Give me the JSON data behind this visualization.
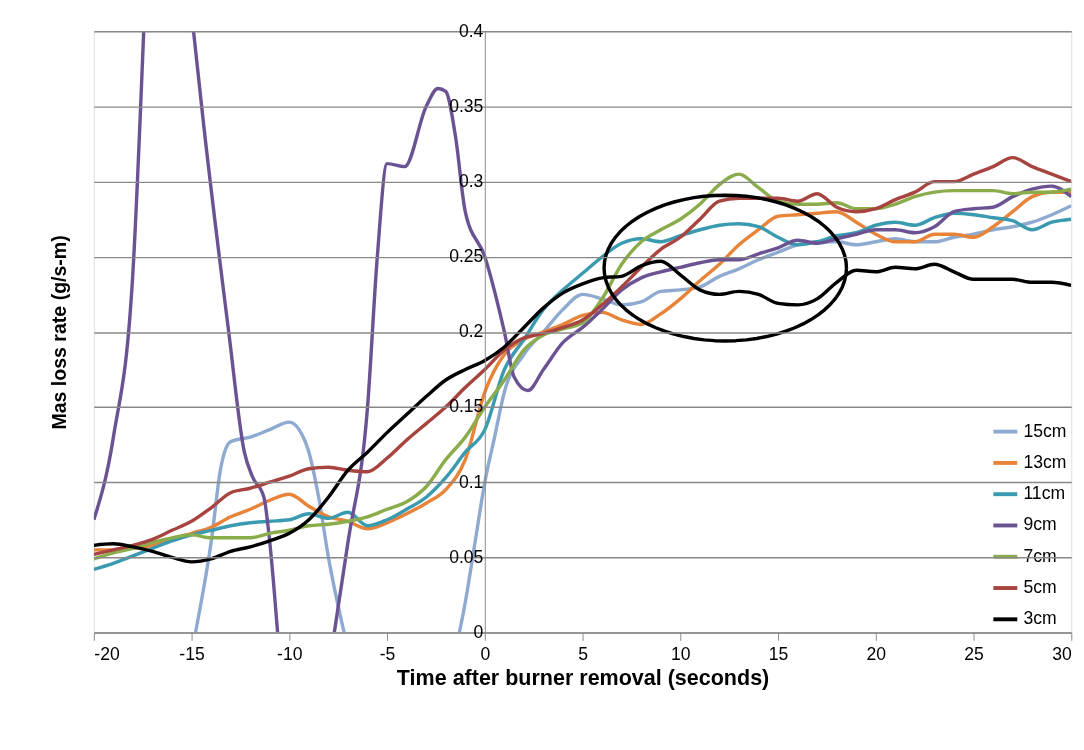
{
  "chart_data": {
    "type": "line",
    "xlabel": "Time after burner removal (seconds)",
    "ylabel": "Mas loss rate (g/s-m)",
    "x": [
      -20,
      -19,
      -18,
      -17,
      -16,
      -15,
      -14,
      -13,
      -12,
      -11,
      -10,
      -9,
      -8,
      -7,
      -6,
      -5,
      -4,
      -3,
      -2,
      -1,
      0,
      1,
      2,
      3,
      4,
      5,
      6,
      7,
      8,
      9,
      10,
      11,
      12,
      13,
      14,
      15,
      16,
      17,
      18,
      19,
      20,
      21,
      22,
      23,
      24,
      25,
      26,
      27,
      28,
      29,
      30
    ],
    "series": [
      {
        "name": "15cm",
        "color": "#8faad0",
        "x": [
          -14.8,
          -14,
          -13.5,
          -13,
          -12,
          -11,
          -10,
          -9.5,
          -9,
          -8.5,
          -8,
          -7.2,
          -4,
          -1.3,
          -1,
          -0.5,
          0,
          0.5,
          1,
          2,
          3,
          4,
          5,
          6,
          7,
          8,
          9,
          10,
          11,
          12,
          13,
          14,
          15,
          16,
          17,
          18,
          19,
          20,
          21,
          22,
          23,
          24,
          25,
          26,
          27,
          28,
          29,
          30
        ],
        "values": [
          0,
          0.06,
          0.11,
          0.127,
          0.13,
          0.135,
          0.14,
          0.135,
          0.12,
          0.09,
          0.05,
          0,
          null,
          0,
          0.02,
          0.06,
          0.1,
          0.13,
          0.16,
          0.185,
          0.2,
          0.215,
          0.225,
          0.222,
          0.218,
          0.22,
          0.227,
          0.228,
          0.23,
          0.237,
          0.242,
          0.248,
          0.253,
          0.258,
          0.26,
          0.26,
          0.258,
          0.26,
          0.262,
          0.26,
          0.26,
          0.263,
          0.265,
          0.268,
          0.27,
          0.273,
          0.278,
          0.284
        ]
      },
      {
        "name": "13cm",
        "color": "#e8843a",
        "values": [
          0.055,
          0.055,
          0.056,
          0.058,
          0.062,
          0.066,
          0.07,
          0.077,
          0.082,
          0.088,
          0.092,
          0.084,
          0.077,
          0.074,
          0.069,
          0.073,
          0.079,
          0.086,
          0.095,
          0.115,
          0.16,
          0.185,
          0.195,
          0.2,
          0.205,
          0.211,
          0.213,
          0.208,
          0.205,
          0.212,
          0.222,
          0.234,
          0.245,
          0.258,
          0.268,
          0.277,
          0.278,
          0.279,
          0.28,
          0.273,
          0.265,
          0.26,
          0.26,
          0.265,
          0.265,
          0.263,
          0.27,
          0.28,
          0.29,
          0.293,
          0.293
        ]
      },
      {
        "name": "11cm",
        "color": "#3a9ab0",
        "values": [
          0.042,
          0.046,
          0.051,
          0.056,
          0.061,
          0.065,
          0.068,
          0.071,
          0.073,
          0.074,
          0.075,
          0.079,
          0.076,
          0.08,
          0.071,
          0.075,
          0.082,
          0.09,
          0.103,
          0.12,
          0.135,
          0.175,
          0.195,
          0.215,
          0.228,
          0.239,
          0.25,
          0.259,
          0.262,
          0.26,
          0.264,
          0.268,
          0.271,
          0.272,
          0.27,
          0.263,
          0.258,
          0.26,
          0.264,
          0.266,
          0.271,
          0.273,
          0.271,
          0.276,
          0.279,
          0.278,
          0.276,
          0.274,
          0.268,
          0.273,
          0.275
        ]
      },
      {
        "name": "9cm",
        "color": "#6b5393",
        "x": [
          -20,
          -19,
          -18,
          -17.45,
          -16,
          -14.9,
          -14.4,
          -13.1,
          -12.3,
          -11.9,
          -11.3,
          -11,
          -10.6,
          -9,
          -7.7,
          -7,
          -6,
          -5.5,
          -5,
          -4.1,
          -3,
          -2.4,
          -2,
          -1.5,
          -1,
          0,
          1,
          1.5,
          2.2,
          3,
          4,
          5,
          6,
          7,
          8,
          9,
          10,
          11,
          12,
          13,
          14,
          15,
          16,
          17,
          18,
          19,
          20,
          21,
          22,
          23,
          24,
          25,
          26,
          27,
          28,
          29,
          30
        ],
        "values": [
          0.075,
          0.13,
          0.24,
          0.4,
          null,
          0.4,
          0.34,
          0.2,
          0.12,
          0.104,
          0.09,
          0.06,
          0,
          null,
          0,
          0.06,
          0.15,
          0.25,
          0.312,
          0.31,
          0.35,
          0.362,
          0.36,
          0.33,
          0.28,
          0.25,
          0.2,
          0.17,
          0.161,
          0.175,
          0.193,
          0.203,
          0.215,
          0.228,
          0.236,
          0.24,
          0.243,
          0.246,
          0.248,
          0.248,
          0.252,
          0.256,
          0.261,
          0.259,
          0.262,
          0.265,
          0.268,
          0.268,
          0.266,
          0.27,
          0.28,
          0.282,
          0.283,
          0.29,
          0.295,
          0.297,
          0.29
        ]
      },
      {
        "name": "7cm",
        "color": "#8aac4a",
        "values": [
          0.049,
          0.053,
          0.056,
          0.06,
          0.063,
          0.065,
          0.063,
          0.063,
          0.063,
          0.066,
          0.068,
          0.071,
          0.072,
          0.074,
          0.077,
          0.082,
          0.087,
          0.097,
          0.115,
          0.13,
          0.15,
          0.168,
          0.188,
          0.198,
          0.202,
          0.206,
          0.222,
          0.245,
          0.26,
          0.268,
          0.275,
          0.285,
          0.298,
          0.305,
          0.296,
          0.287,
          0.285,
          0.285,
          0.286,
          0.282,
          0.282,
          0.285,
          0.29,
          0.293,
          0.294,
          0.294,
          0.294,
          0.292,
          0.293,
          0.293,
          0.295
        ]
      },
      {
        "name": "5cm",
        "color": "#a84440",
        "values": [
          0.052,
          0.055,
          0.058,
          0.062,
          0.068,
          0.074,
          0.083,
          0.093,
          0.096,
          0.1,
          0.104,
          0.109,
          0.11,
          0.108,
          0.107,
          0.116,
          0.128,
          0.139,
          0.15,
          0.163,
          0.175,
          0.188,
          0.196,
          0.199,
          0.203,
          0.208,
          0.218,
          0.23,
          0.243,
          0.255,
          0.263,
          0.275,
          0.287,
          0.289,
          0.289,
          0.289,
          0.287,
          0.292,
          0.283,
          0.28,
          0.282,
          0.288,
          0.293,
          0.3,
          0.3,
          0.305,
          0.31,
          0.316,
          0.31,
          0.305,
          0.3
        ]
      },
      {
        "name": "3cm",
        "color": "#000000",
        "values": [
          0.058,
          0.059,
          0.057,
          0.054,
          0.05,
          0.047,
          0.049,
          0.054,
          0.057,
          0.061,
          0.066,
          0.075,
          0.09,
          0.108,
          0.12,
          0.133,
          0.145,
          0.157,
          0.168,
          0.175,
          0.181,
          0.19,
          0.203,
          0.216,
          0.226,
          0.232,
          0.236,
          0.237,
          0.244,
          0.247,
          0.238,
          0.228,
          0.225,
          0.227,
          0.225,
          0.219,
          0.218,
          0.222,
          0.233,
          0.241,
          0.24,
          0.243,
          0.242,
          0.245,
          0.24,
          0.235,
          0.235,
          0.235,
          0.233,
          0.233,
          0.231
        ]
      }
    ],
    "xlim": [
      -20,
      30
    ],
    "xticks": [
      -20,
      -15,
      -10,
      -5,
      0,
      5,
      10,
      15,
      20,
      25,
      30
    ],
    "ylim": [
      0,
      0.4
    ],
    "yticks": [
      0,
      0.05,
      0.1,
      0.15,
      0.2,
      0.25,
      0.3,
      0.35,
      0.4
    ],
    "grid": "y",
    "legend": "bottom right",
    "marker": "none",
    "line_style": "solid"
  }
}
